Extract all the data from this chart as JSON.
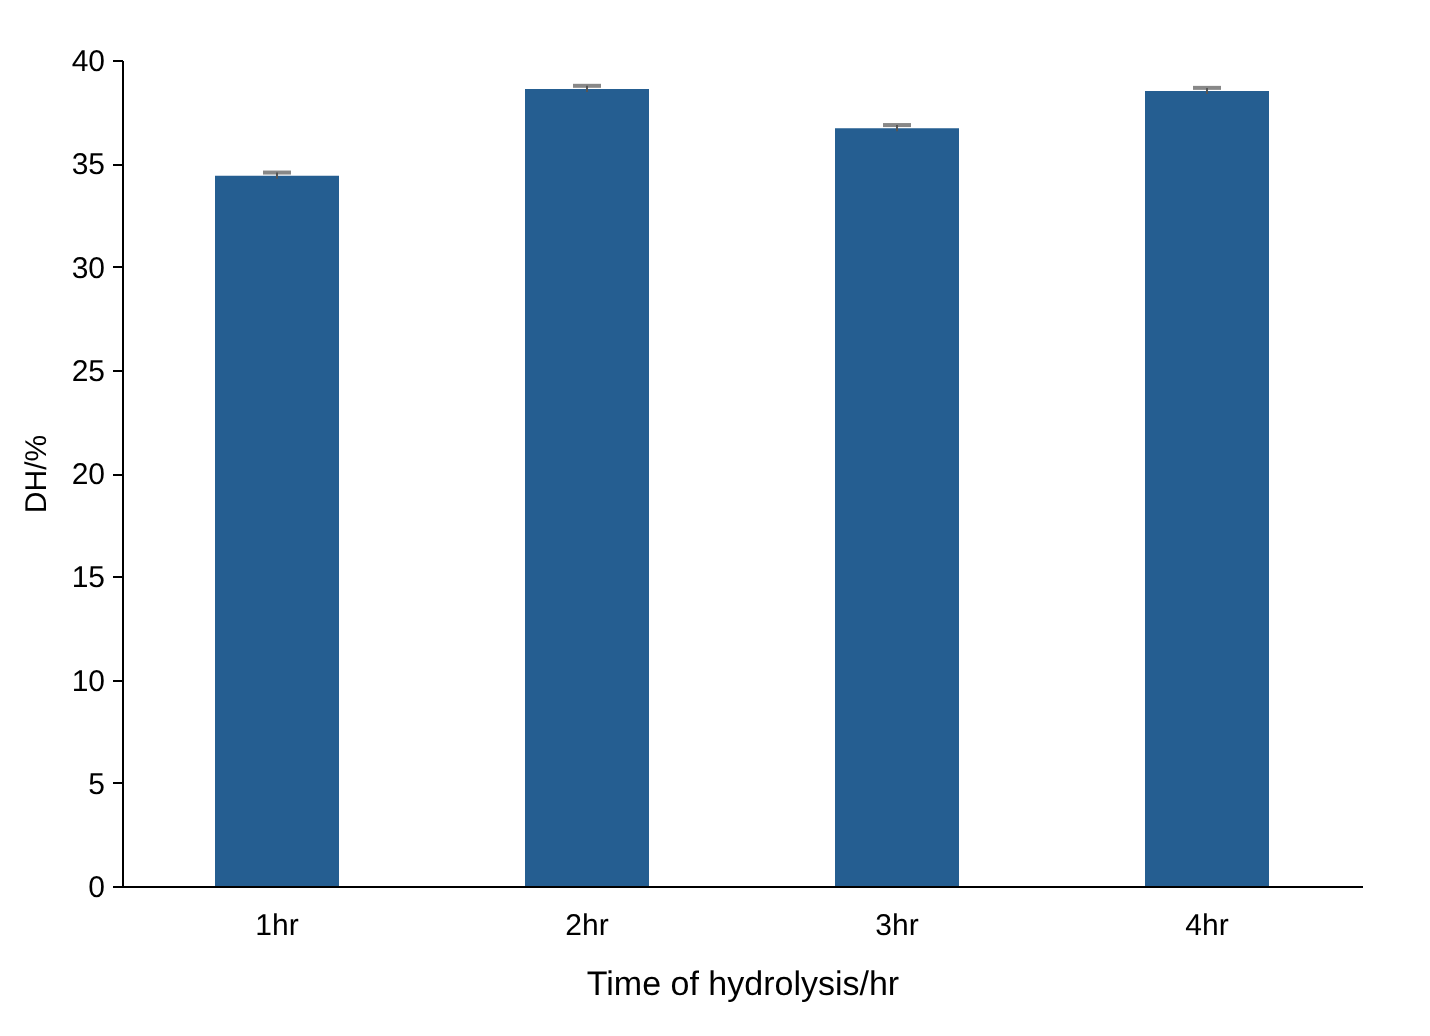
{
  "chart_data": {
    "type": "bar",
    "xlabel": "Time of hydrolysis/hr",
    "ylabel": "DH/%",
    "categories": [
      "1hr",
      "2hr",
      "3hr",
      "4hr"
    ],
    "values": [
      34.4,
      38.6,
      36.7,
      38.5
    ],
    "errors": [
      0.15,
      0.15,
      0.15,
      0.15
    ],
    "color": "#255e91",
    "ylim": [
      0,
      40
    ],
    "yticks": [
      0,
      5,
      10,
      15,
      20,
      25,
      30,
      35,
      40
    ],
    "grid": false
  }
}
